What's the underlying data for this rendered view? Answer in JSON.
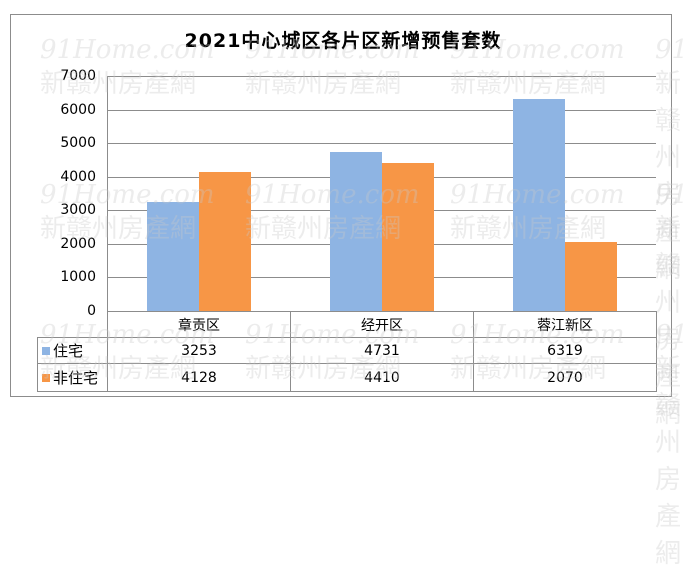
{
  "chart_data": {
    "type": "bar",
    "title": "2021中心城区各片区新增预售套数",
    "categories": [
      "章贡区",
      "经开区",
      "蓉江新区"
    ],
    "series": [
      {
        "name": "住宅",
        "color": "#8eb4e3",
        "values": [
          3253,
          4731,
          6319
        ]
      },
      {
        "name": "非住宅",
        "color": "#f79646",
        "values": [
          4128,
          4410,
          2070
        ]
      }
    ],
    "xlabel": "",
    "ylabel": "",
    "ylim": [
      0,
      7000
    ],
    "yticks": [
      "0",
      "1000",
      "2000",
      "3000",
      "4000",
      "5000",
      "6000",
      "7000"
    ],
    "grid": true,
    "legend_position": "data-table",
    "data_table": true
  },
  "watermark": {
    "line1": "91Home.com",
    "line2": "新赣州房產網"
  },
  "table": {
    "rows": [
      {
        "label": "住宅",
        "values": [
          "3253",
          "4731",
          "6319"
        ]
      },
      {
        "label": "非住宅",
        "values": [
          "4128",
          "4410",
          "2070"
        ]
      }
    ]
  }
}
